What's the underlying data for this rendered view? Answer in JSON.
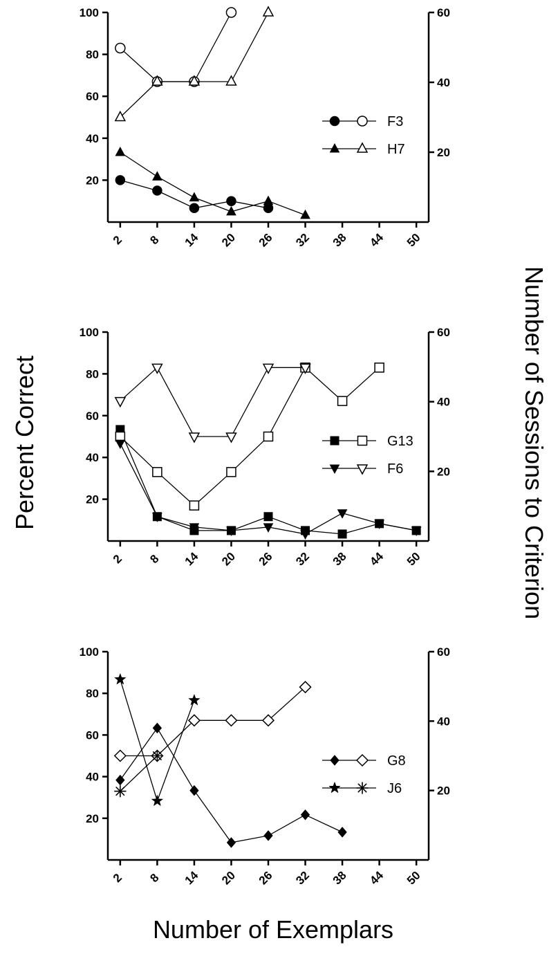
{
  "labels": {
    "ylabel_left": "Percent Correct",
    "ylabel_right": "Number of Sessions to Criterion",
    "xlabel": "Number of Exemplars"
  },
  "chart_data": [
    {
      "type": "line",
      "x_ticks": [
        2,
        8,
        14,
        20,
        26,
        32,
        38,
        44,
        50
      ],
      "xlim": [
        0,
        52
      ],
      "y_left": {
        "ylim": [
          0,
          100
        ],
        "ticks": [
          20,
          40,
          60,
          80,
          100
        ]
      },
      "y_right": {
        "ylim": [
          0,
          60
        ],
        "ticks": [
          20,
          40,
          60
        ]
      },
      "grid": false,
      "legend_position": "center-right",
      "subjects": [
        {
          "name": "F3",
          "percent_correct": {
            "x": [
              2,
              8,
              14,
              20
            ],
            "y": [
              83,
              67,
              67,
              100
            ],
            "marker": "circle-open"
          },
          "sessions": {
            "x": [
              2,
              8,
              14,
              20,
              26
            ],
            "y": [
              12,
              9,
              4,
              6,
              4
            ],
            "marker": "circle-filled"
          }
        },
        {
          "name": "H7",
          "percent_correct": {
            "x": [
              2,
              8,
              14,
              20,
              26
            ],
            "y": [
              50,
              67,
              67,
              67,
              100
            ],
            "marker": "triangle-up-open"
          },
          "sessions": {
            "x": [
              2,
              8,
              14,
              20,
              26,
              32
            ],
            "y": [
              20,
              13,
              7,
              3,
              6,
              2
            ],
            "marker": "triangle-up-filled"
          }
        }
      ]
    },
    {
      "type": "line",
      "x_ticks": [
        2,
        8,
        14,
        20,
        26,
        32,
        38,
        44,
        50
      ],
      "xlim": [
        0,
        52
      ],
      "y_left": {
        "ylim": [
          0,
          100
        ],
        "ticks": [
          20,
          40,
          60,
          80,
          100
        ]
      },
      "y_right": {
        "ylim": [
          0,
          60
        ],
        "ticks": [
          20,
          40,
          60
        ]
      },
      "grid": false,
      "legend_position": "center-right",
      "subjects": [
        {
          "name": "G13",
          "percent_correct": {
            "x": [
              2,
              8,
              14,
              20,
              26,
              32,
              38,
              44
            ],
            "y": [
              50,
              33,
              17,
              33,
              50,
              83,
              67,
              83
            ],
            "marker": "square-open"
          },
          "sessions": {
            "x": [
              2,
              8,
              14,
              20,
              26,
              32,
              38,
              44,
              50
            ],
            "y": [
              32,
              7,
              3,
              3,
              7,
              3,
              2,
              5,
              3
            ],
            "marker": "square-filled"
          }
        },
        {
          "name": "F6",
          "percent_correct": {
            "x": [
              2,
              8,
              14,
              20,
              26,
              32
            ],
            "y": [
              67,
              83,
              50,
              50,
              83,
              83
            ],
            "marker": "triangle-down-open"
          },
          "sessions": {
            "x": [
              2,
              8,
              14,
              20,
              26,
              32,
              38,
              44,
              50
            ],
            "y": [
              28,
              7,
              4,
              3,
              4,
              2,
              8,
              5,
              3
            ],
            "marker": "triangle-down-filled"
          }
        }
      ]
    },
    {
      "type": "line",
      "x_ticks": [
        2,
        8,
        14,
        20,
        26,
        32,
        38,
        44,
        50
      ],
      "xlim": [
        0,
        52
      ],
      "y_left": {
        "ylim": [
          0,
          100
        ],
        "ticks": [
          20,
          40,
          60,
          80,
          100
        ]
      },
      "y_right": {
        "ylim": [
          0,
          60
        ],
        "ticks": [
          20,
          40,
          60
        ]
      },
      "grid": false,
      "legend_position": "center-right",
      "subjects": [
        {
          "name": "G8",
          "percent_correct": {
            "x": [
              2,
              8,
              14,
              20,
              26,
              32
            ],
            "y": [
              50,
              50,
              67,
              67,
              67,
              83
            ],
            "marker": "diamond-open"
          },
          "sessions": {
            "x": [
              2,
              8,
              14,
              20,
              26,
              32,
              38
            ],
            "y": [
              23,
              38,
              20,
              5,
              7,
              13,
              8
            ],
            "marker": "diamond-filled"
          }
        },
        {
          "name": "J6",
          "percent_correct": {
            "x": [
              2,
              8
            ],
            "y": [
              33,
              50
            ],
            "marker": "asterisk"
          },
          "sessions": {
            "x": [
              2,
              8,
              14
            ],
            "y": [
              52,
              17,
              46
            ],
            "marker": "star-filled"
          }
        }
      ]
    }
  ]
}
